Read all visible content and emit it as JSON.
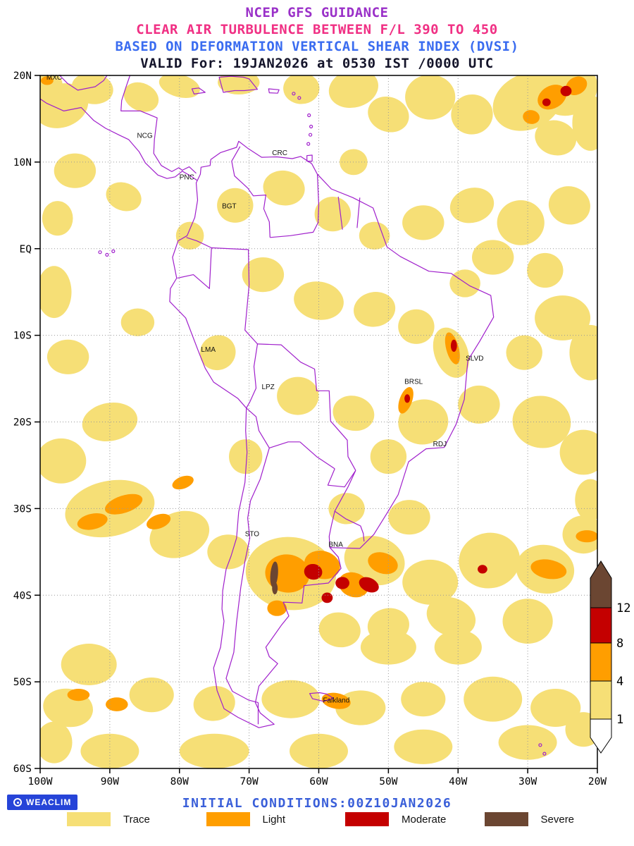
{
  "title": {
    "line1": "NCEP GFS GUIDANCE",
    "line2": "CLEAR AIR TURBULENCE BETWEEN F/L 390 TO 450",
    "line3": "BASED ON DEFORMATION VERTICAL SHEAR INDEX (DVSI)",
    "line4": "VALID For: 19JAN2026 at 0530 IST /0000 UTC"
  },
  "colors": {
    "title1": "#9a30c8",
    "title2": "#f03084",
    "title3": "#3a6cf0",
    "title4": "#14142a",
    "outline": "#a020cc",
    "grid": "#999999",
    "frame": "#000000",
    "footer_text": "#3a5fd9",
    "logo_bg": "#2644d8"
  },
  "severity_colors": {
    "trace": "#f6df76",
    "light": "#ff9e00",
    "moderate": "#c40000",
    "severe": "#6b4632"
  },
  "axes": {
    "lat_ticks": [
      {
        "label": "20N",
        "deg": 20
      },
      {
        "label": "10N",
        "deg": 10
      },
      {
        "label": "EQ",
        "deg": 0
      },
      {
        "label": "10S",
        "deg": -10
      },
      {
        "label": "20S",
        "deg": -20
      },
      {
        "label": "30S",
        "deg": -30
      },
      {
        "label": "40S",
        "deg": -40
      },
      {
        "label": "50S",
        "deg": -50
      },
      {
        "label": "60S",
        "deg": -60
      }
    ],
    "lon_ticks": [
      {
        "label": "100W",
        "deg": -100
      },
      {
        "label": "90W",
        "deg": -90
      },
      {
        "label": "80W",
        "deg": -80
      },
      {
        "label": "70W",
        "deg": -70
      },
      {
        "label": "60W",
        "deg": -60
      },
      {
        "label": "50W",
        "deg": -50
      },
      {
        "label": "40W",
        "deg": -40
      },
      {
        "label": "30W",
        "deg": -30
      },
      {
        "label": "20W",
        "deg": -20
      }
    ]
  },
  "cities": [
    {
      "label": "MXC",
      "lon": -99.3,
      "lat": 19.5
    },
    {
      "label": "NCG",
      "lon": -86.3,
      "lat": 12.8
    },
    {
      "label": "CRC",
      "lon": -66.9,
      "lat": 10.8
    },
    {
      "label": "PNC",
      "lon": -80.2,
      "lat": 8.0
    },
    {
      "label": "BGT",
      "lon": -74.1,
      "lat": 4.65
    },
    {
      "label": "LMA",
      "lon": -77.1,
      "lat": -11.9
    },
    {
      "label": "LPZ",
      "lon": -68.4,
      "lat": -16.2
    },
    {
      "label": "BRSL",
      "lon": -47.9,
      "lat": -15.6
    },
    {
      "label": "SLVD",
      "lon": -39.1,
      "lat": -12.9
    },
    {
      "label": "RDJ",
      "lon": -43.8,
      "lat": -22.8
    },
    {
      "label": "STO",
      "lon": -70.8,
      "lat": -33.2
    },
    {
      "label": "BNA",
      "lon": -58.8,
      "lat": -34.4
    },
    {
      "label": "Falkland",
      "lon": -59.6,
      "lat": -52.4
    }
  ],
  "colorbar": {
    "tick_labels": [
      "12",
      "8",
      "4",
      "1"
    ],
    "segments_top_to_bottom": [
      "severe",
      "moderate",
      "light",
      "trace",
      "none"
    ]
  },
  "footer": {
    "logo_text": "WEACLIM",
    "initial_conditions": "INITIAL CONDITIONS:00Z10JAN2026",
    "legend": [
      {
        "label": "Trace",
        "level": "trace"
      },
      {
        "label": "Light",
        "level": "light"
      },
      {
        "label": "Moderate",
        "level": "moderate"
      },
      {
        "label": "Severe",
        "level": "severe"
      }
    ]
  },
  "patches": {
    "trace": [
      [
        -97,
        16.5,
        4,
        2.5,
        -20
      ],
      [
        -92.5,
        18.5,
        3,
        1.8,
        10
      ],
      [
        -99,
        19,
        2.2,
        1.4,
        0
      ],
      [
        -85.5,
        17.5,
        2.6,
        1.6,
        25
      ],
      [
        -80,
        18.8,
        3,
        1.3,
        15
      ],
      [
        -71.5,
        19.2,
        3,
        1.4,
        0
      ],
      [
        -62.5,
        18.5,
        2.6,
        1.8,
        0
      ],
      [
        -55,
        18.5,
        3.6,
        2.2,
        -15
      ],
      [
        -50,
        15.5,
        3,
        2,
        20
      ],
      [
        -44,
        17.5,
        3.6,
        2.6,
        0
      ],
      [
        -38,
        15.5,
        3,
        2.3,
        -10
      ],
      [
        -30,
        17,
        5.2,
        3.2,
        -25
      ],
      [
        -24,
        18.3,
        4.2,
        2.8,
        -30
      ],
      [
        -26,
        12.8,
        3,
        2,
        15
      ],
      [
        -21,
        14.5,
        2.6,
        3.2,
        0
      ],
      [
        -95,
        9,
        3,
        2,
        0
      ],
      [
        -88,
        6,
        2.6,
        1.6,
        20
      ],
      [
        -97.5,
        3.5,
        2.2,
        2,
        0
      ],
      [
        -98,
        -5,
        2.5,
        3,
        0
      ],
      [
        -78.5,
        1.5,
        2,
        1.6,
        0
      ],
      [
        -72,
        5,
        2.6,
        2,
        0
      ],
      [
        -65,
        7,
        3,
        2,
        10
      ],
      [
        -58,
        4,
        2.6,
        2,
        0
      ],
      [
        -55,
        10,
        2,
        1.5,
        0
      ],
      [
        -52,
        1.5,
        2.2,
        1.6,
        0
      ],
      [
        -45,
        3,
        3,
        2,
        0
      ],
      [
        -38,
        5,
        3.2,
        2,
        -15
      ],
      [
        -31,
        3,
        3.4,
        2.6,
        0
      ],
      [
        -24,
        5,
        3,
        2.2,
        15
      ],
      [
        -35,
        -1,
        3,
        2,
        0
      ],
      [
        -27.5,
        -2.5,
        2.6,
        2,
        0
      ],
      [
        -68,
        -3,
        3,
        2,
        0
      ],
      [
        -60,
        -6,
        3.6,
        2.2,
        10
      ],
      [
        -52,
        -7,
        3,
        2,
        -10
      ],
      [
        -46,
        -9,
        2.6,
        2,
        0
      ],
      [
        -39,
        -4,
        2.2,
        1.6,
        0
      ],
      [
        -41,
        -12,
        2.4,
        3,
        -20
      ],
      [
        -25,
        -8,
        4,
        2.6,
        0
      ],
      [
        -21,
        -12,
        3,
        3.2,
        0
      ],
      [
        -30.5,
        -12,
        2.6,
        2,
        0
      ],
      [
        -74.5,
        -12,
        2.6,
        2,
        -30
      ],
      [
        -96,
        -12.5,
        3,
        2,
        0
      ],
      [
        -86,
        -8.5,
        2.4,
        1.6,
        0
      ],
      [
        -63,
        -17,
        3,
        2.2,
        0
      ],
      [
        -55,
        -19,
        3,
        2,
        15
      ],
      [
        -45,
        -20,
        3.6,
        2.6,
        -10
      ],
      [
        -37,
        -18,
        3,
        2.2,
        0
      ],
      [
        -28,
        -20,
        4.2,
        3,
        10
      ],
      [
        -22,
        -23.5,
        3.4,
        2.6,
        0
      ],
      [
        -21,
        -29,
        2.2,
        2.4,
        0
      ],
      [
        -90,
        -20,
        4,
        2.2,
        -10
      ],
      [
        -97,
        -24.5,
        3.6,
        2.6,
        0
      ],
      [
        -70.5,
        -24,
        2.4,
        2,
        0
      ],
      [
        -50,
        -24,
        2.6,
        2,
        0
      ],
      [
        -90,
        -30,
        6.5,
        3.2,
        -12
      ],
      [
        -80,
        -33,
        4.4,
        2.6,
        -20
      ],
      [
        -73,
        -35,
        3,
        2,
        0
      ],
      [
        -64,
        -37.5,
        6.5,
        4.2,
        8
      ],
      [
        -52,
        -36,
        4.4,
        2.8,
        15
      ],
      [
        -44,
        -38.5,
        4,
        2.6,
        0
      ],
      [
        -35.5,
        -36,
        4.4,
        3.2,
        -10
      ],
      [
        -27.5,
        -37,
        4.2,
        2.8,
        10
      ],
      [
        -22,
        -33,
        3,
        2.2,
        0
      ],
      [
        -47,
        -31,
        3,
        2,
        0
      ],
      [
        -56,
        -30,
        2.6,
        1.8,
        0
      ],
      [
        -41,
        -42.5,
        3.6,
        2.2,
        20
      ],
      [
        -50,
        -43.5,
        3,
        2,
        -10
      ],
      [
        -30,
        -43,
        3.6,
        2.6,
        0
      ],
      [
        -57,
        -44,
        3,
        2,
        10
      ],
      [
        -50,
        -46,
        4,
        2,
        0
      ],
      [
        -40,
        -46,
        3.4,
        2,
        0
      ],
      [
        -93,
        -48,
        4,
        2.4,
        0
      ],
      [
        -96,
        -53,
        3.6,
        2.2,
        10
      ],
      [
        -98,
        -57,
        2.6,
        2.4,
        0
      ],
      [
        -84,
        -51.5,
        3.2,
        2,
        0
      ],
      [
        -75,
        -52.5,
        3,
        2,
        -10
      ],
      [
        -64,
        -52,
        4.2,
        2.2,
        0
      ],
      [
        -54,
        -53,
        3.6,
        2,
        0
      ],
      [
        -45,
        -52,
        3.2,
        2,
        0
      ],
      [
        -35,
        -52,
        4.2,
        2.6,
        0
      ],
      [
        -26,
        -53,
        3.6,
        2.2,
        0
      ],
      [
        -90,
        -58,
        4.2,
        2,
        0
      ],
      [
        -75,
        -58,
        5,
        2,
        0
      ],
      [
        -60,
        -58,
        4.2,
        2,
        0
      ],
      [
        -45,
        -57.5,
        4.2,
        2,
        0
      ],
      [
        -30,
        -57,
        4.2,
        2,
        0
      ],
      [
        -22,
        -55.5,
        2.6,
        2,
        0
      ]
    ],
    "light": [
      [
        -26.5,
        17.5,
        2.2,
        1.3,
        -30
      ],
      [
        -23,
        18.8,
        1.6,
        1,
        -30
      ],
      [
        -29.5,
        15.2,
        1.2,
        0.8,
        10
      ],
      [
        -99,
        19.4,
        0.9,
        0.5,
        0
      ],
      [
        -40.8,
        -11.5,
        0.9,
        1.9,
        -15
      ],
      [
        -47.5,
        -17.5,
        0.9,
        1.6,
        20
      ],
      [
        -88,
        -29.5,
        2.8,
        1,
        -18
      ],
      [
        -92.5,
        -31.5,
        2.2,
        0.9,
        -12
      ],
      [
        -83,
        -31.5,
        1.8,
        0.8,
        -20
      ],
      [
        -79.5,
        -27,
        1.6,
        0.7,
        -20
      ],
      [
        -64.5,
        -37.5,
        3.2,
        2.2,
        8
      ],
      [
        -59.5,
        -36.5,
        2.6,
        1.6,
        15
      ],
      [
        -55,
        -38.8,
        2.2,
        1.4,
        20
      ],
      [
        -50.8,
        -36.3,
        2.2,
        1.2,
        18
      ],
      [
        -66,
        -41.5,
        1.4,
        0.9,
        0
      ],
      [
        -27,
        -37,
        2.6,
        1.1,
        10
      ],
      [
        -21.5,
        -33.2,
        1.6,
        0.7,
        0
      ],
      [
        -89,
        -52.6,
        1.6,
        0.8,
        0
      ],
      [
        -94.5,
        -51.5,
        1.6,
        0.7,
        0
      ],
      [
        -57.5,
        -52.2,
        2.1,
        0.9,
        10
      ]
    ],
    "moderate": [
      [
        -24.5,
        18.2,
        0.8,
        0.6,
        0
      ],
      [
        -27.3,
        16.9,
        0.6,
        0.45,
        0
      ],
      [
        -40.6,
        -11.2,
        0.45,
        0.7,
        0
      ],
      [
        -47.3,
        -17.3,
        0.4,
        0.5,
        0
      ],
      [
        -60.8,
        -37.3,
        1.3,
        0.9,
        10
      ],
      [
        -56.6,
        -38.6,
        1,
        0.7,
        0
      ],
      [
        -52.8,
        -38.8,
        1.5,
        0.8,
        25
      ],
      [
        -36.5,
        -37,
        0.7,
        0.5,
        0
      ],
      [
        -58.8,
        -40.3,
        0.8,
        0.6,
        0
      ]
    ],
    "severe": [
      [
        -66.4,
        -37.6,
        0.55,
        1.5,
        5
      ],
      [
        -66.3,
        -39.2,
        0.4,
        0.7,
        0
      ]
    ]
  }
}
